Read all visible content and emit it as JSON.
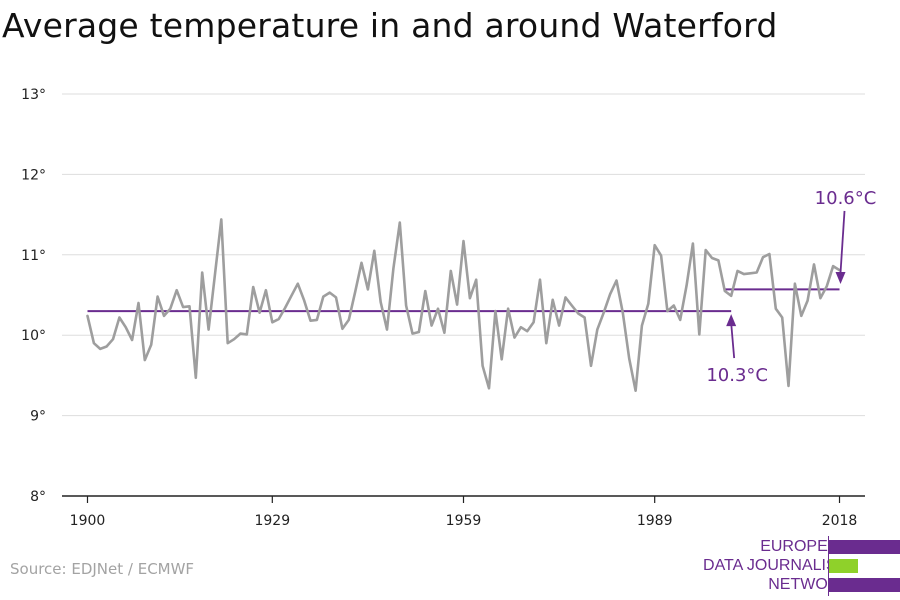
{
  "title": "Average temperature in and around Waterford",
  "source": "Source: EDJNet / ECMWF",
  "logo": {
    "line1": "EUROPEAN",
    "line2": "DATA JOURNALISM",
    "line3": "NETWORK",
    "bar_color_1": "#6a2c8f",
    "bar_color_2": "#8fd12a",
    "bar_color_3": "#6a2c8f"
  },
  "chart_data": {
    "type": "line",
    "x_ticks": [
      1900,
      1929,
      1959,
      1989,
      2018
    ],
    "y_ticks": [
      8,
      9,
      10,
      11,
      12,
      13
    ],
    "y_tick_labels": [
      "8°",
      "9°",
      "10°",
      "11°",
      "12°",
      "13°"
    ],
    "xlim": [
      1896,
      2022
    ],
    "ylim": [
      8,
      13
    ],
    "grid": true,
    "series": [
      {
        "color": "#9e9e9e",
        "x_start": 1900,
        "values": [
          10.24,
          9.9,
          9.83,
          9.86,
          9.95,
          10.22,
          10.1,
          9.94,
          10.4,
          9.69,
          9.88,
          10.48,
          10.24,
          10.33,
          10.56,
          10.35,
          10.36,
          9.47,
          10.78,
          10.07,
          10.76,
          11.44,
          9.9,
          9.95,
          10.02,
          10.01,
          10.6,
          10.28,
          10.56,
          10.16,
          10.2,
          10.34,
          10.49,
          10.64,
          10.43,
          10.18,
          10.19,
          10.48,
          10.53,
          10.47,
          10.08,
          10.19,
          10.54,
          10.9,
          10.57,
          11.05,
          10.41,
          10.07,
          10.83,
          11.4,
          10.37,
          10.02,
          10.04,
          10.55,
          10.12,
          10.33,
          10.03,
          10.8,
          10.38,
          11.17,
          10.46,
          10.69,
          9.62,
          9.34,
          10.3,
          9.7,
          10.33,
          9.97,
          10.1,
          10.05,
          10.16,
          10.69,
          9.9,
          10.44,
          10.12,
          10.47,
          10.37,
          10.27,
          10.22,
          9.62,
          10.07,
          10.28,
          10.51,
          10.68,
          10.28,
          9.71,
          9.31,
          10.12,
          10.39,
          11.12,
          10.99,
          10.3,
          10.37,
          10.19,
          10.62,
          11.14,
          10.01,
          11.06,
          10.96,
          10.93,
          10.55,
          10.49,
          10.8,
          10.76,
          10.77,
          10.78,
          10.97,
          11.01,
          10.33,
          10.22,
          9.37,
          10.64,
          10.24,
          10.43,
          10.88,
          10.46,
          10.61,
          10.86,
          10.81
        ]
      }
    ],
    "reference_lines": [
      {
        "value": 10.3,
        "x_start": 1900,
        "x_end": 2001,
        "color": "#6a2c8f"
      },
      {
        "value": 10.57,
        "x_start": 2000,
        "x_end": 2018,
        "color": "#6a2c8f"
      }
    ],
    "annotations": [
      {
        "text": "10.3°C",
        "x": 2001,
        "y": 10.3,
        "color": "#6a2c8f"
      },
      {
        "text": "10.6°C",
        "x": 2018,
        "y": 10.6,
        "color": "#6a2c8f"
      }
    ],
    "colors": {
      "axis": "#222222",
      "grid": "#dddddd",
      "tick_label": "#222222",
      "line": "#9e9e9e",
      "reference": "#6a2c8f"
    }
  }
}
